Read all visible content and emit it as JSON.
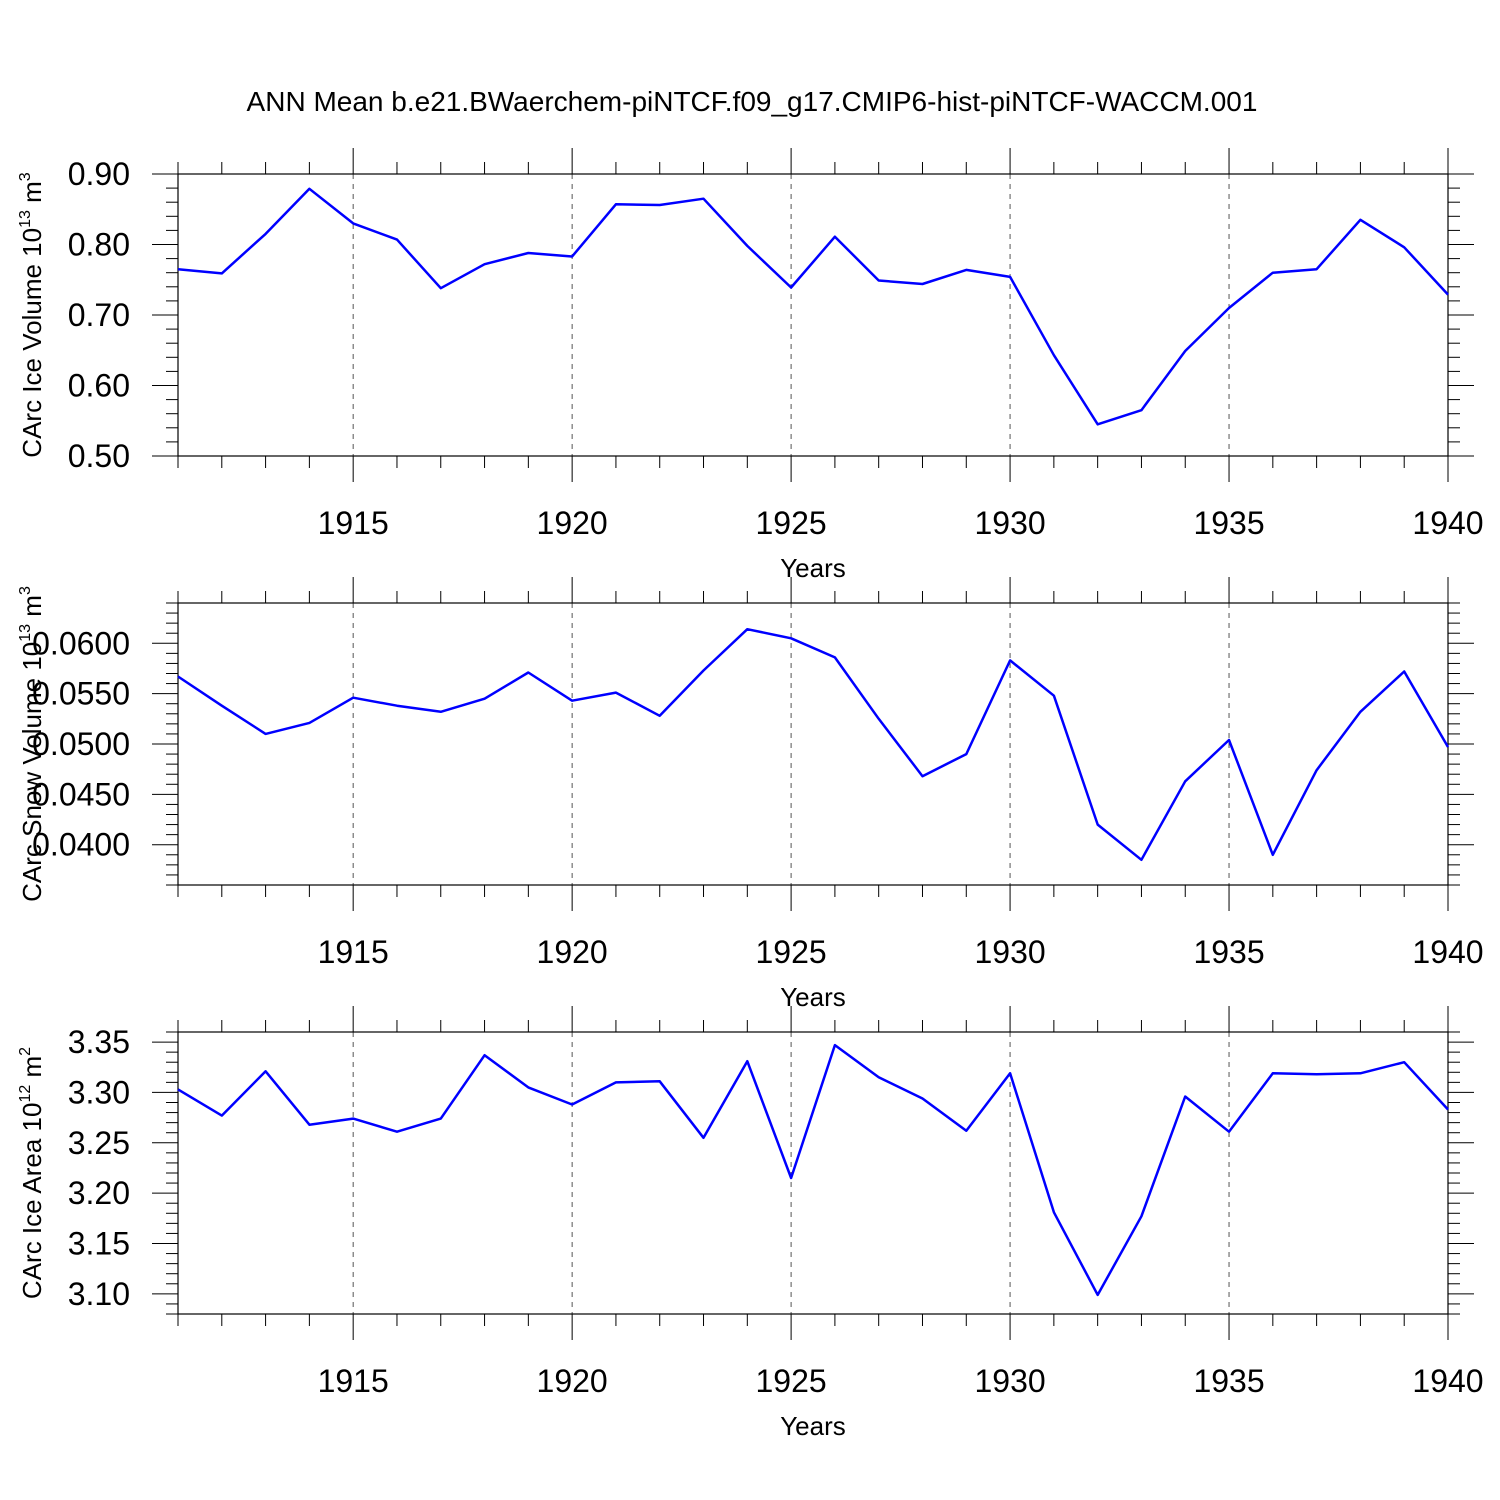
{
  "title": "ANN Mean b.e21.BWaerchem-piNTCF.f09_g17.CMIP6-hist-piNTCF-WACCM.001",
  "colors": {
    "line": "#0000ff",
    "axis": "#000000",
    "grid": "#555555"
  },
  "chart_data": [
    {
      "type": "line",
      "title": "",
      "xlabel": "Years",
      "ylabel": {
        "main": "CArc Ice Volume 10",
        "exp": "13",
        "unit": " m",
        "unit_exp": "3"
      },
      "xlim": [
        1911,
        1940
      ],
      "ylim": [
        0.5,
        0.9
      ],
      "x_ticks": [
        1915,
        1920,
        1925,
        1930,
        1935,
        1940
      ],
      "x_ticklabels": [
        "1915",
        "1920",
        "1925",
        "1930",
        "1935",
        "1940"
      ],
      "y_ticks": [
        0.5,
        0.6,
        0.7,
        0.8,
        0.9
      ],
      "y_ticklabels": [
        "0.50",
        "0.60",
        "0.70",
        "0.80",
        "0.90"
      ],
      "y_minor_step": 0.02,
      "grid": "vertical dashed at major x ticks",
      "x": [
        1911,
        1912,
        1913,
        1914,
        1915,
        1916,
        1917,
        1918,
        1919,
        1920,
        1921,
        1922,
        1923,
        1924,
        1925,
        1926,
        1927,
        1928,
        1929,
        1930,
        1931,
        1932,
        1933,
        1934,
        1935,
        1936,
        1937,
        1938,
        1939,
        1940
      ],
      "series": [
        {
          "values": [
            0.765,
            0.759,
            0.815,
            0.879,
            0.83,
            0.807,
            0.738,
            0.772,
            0.788,
            0.783,
            0.857,
            0.856,
            0.865,
            0.798,
            0.739,
            0.811,
            0.749,
            0.744,
            0.764,
            0.754,
            0.643,
            0.545,
            0.565,
            0.649,
            0.71,
            0.76,
            0.765,
            0.835,
            0.796,
            0.729
          ]
        }
      ]
    },
    {
      "type": "line",
      "title": "",
      "xlabel": "Years",
      "ylabel": {
        "main": "CArc Snow Volume 10",
        "exp": "13",
        "unit": " m",
        "unit_exp": "3"
      },
      "xlim": [
        1911,
        1940
      ],
      "ylim": [
        0.036,
        0.064
      ],
      "x_ticks": [
        1915,
        1920,
        1925,
        1930,
        1935,
        1940
      ],
      "x_ticklabels": [
        "1915",
        "1920",
        "1925",
        "1930",
        "1935",
        "1940"
      ],
      "y_ticks": [
        0.04,
        0.045,
        0.05,
        0.055,
        0.06
      ],
      "y_ticklabels": [
        "0.0400",
        "0.0450",
        "0.0500",
        "0.0550",
        "0.0600"
      ],
      "y_minor_step": 0.001,
      "grid": "vertical dashed at major x ticks",
      "x": [
        1911,
        1912,
        1913,
        1914,
        1915,
        1916,
        1917,
        1918,
        1919,
        1920,
        1921,
        1922,
        1923,
        1924,
        1925,
        1926,
        1927,
        1928,
        1929,
        1930,
        1931,
        1932,
        1933,
        1934,
        1935,
        1936,
        1937,
        1938,
        1939,
        1940
      ],
      "series": [
        {
          "values": [
            0.0567,
            0.0538,
            0.051,
            0.0521,
            0.0546,
            0.0538,
            0.0532,
            0.0545,
            0.0571,
            0.0543,
            0.0551,
            0.0528,
            0.0573,
            0.0614,
            0.0605,
            0.0586,
            0.0525,
            0.0468,
            0.049,
            0.0583,
            0.0548,
            0.042,
            0.0385,
            0.0463,
            0.0504,
            0.039,
            0.0474,
            0.0532,
            0.0572,
            0.0497
          ]
        }
      ]
    },
    {
      "type": "line",
      "title": "",
      "xlabel": "Years",
      "ylabel": {
        "main": "CArc Ice Area 10",
        "exp": "12",
        "unit": " m",
        "unit_exp": "2"
      },
      "xlim": [
        1911,
        1940
      ],
      "ylim": [
        3.08,
        3.36
      ],
      "x_ticks": [
        1915,
        1920,
        1925,
        1930,
        1935,
        1940
      ],
      "x_ticklabels": [
        "1915",
        "1920",
        "1925",
        "1930",
        "1935",
        "1940"
      ],
      "y_ticks": [
        3.1,
        3.15,
        3.2,
        3.25,
        3.3,
        3.35
      ],
      "y_ticklabels": [
        "3.10",
        "3.15",
        "3.20",
        "3.25",
        "3.30",
        "3.35"
      ],
      "y_minor_step": 0.01,
      "grid": "vertical dashed at major x ticks",
      "x": [
        1911,
        1912,
        1913,
        1914,
        1915,
        1916,
        1917,
        1918,
        1919,
        1920,
        1921,
        1922,
        1923,
        1924,
        1925,
        1926,
        1927,
        1928,
        1929,
        1930,
        1931,
        1932,
        1933,
        1934,
        1935,
        1936,
        1937,
        1938,
        1939,
        1940
      ],
      "series": [
        {
          "values": [
            3.303,
            3.277,
            3.321,
            3.268,
            3.274,
            3.261,
            3.274,
            3.337,
            3.305,
            3.288,
            3.31,
            3.311,
            3.255,
            3.331,
            3.215,
            3.347,
            3.315,
            3.294,
            3.262,
            3.319,
            3.181,
            3.099,
            3.177,
            3.296,
            3.261,
            3.319,
            3.318,
            3.319,
            3.33,
            3.283
          ]
        }
      ]
    }
  ]
}
